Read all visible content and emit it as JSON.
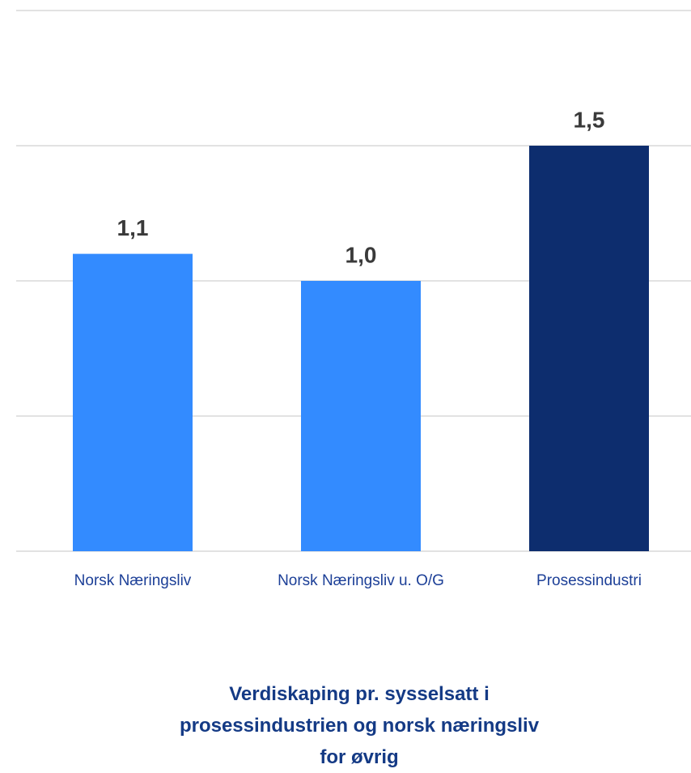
{
  "chart_data": {
    "type": "bar",
    "title": "Verdiskaping pr. sysselsatt i prosessindustrien og norsk næringsliv for øvrig",
    "categories": [
      "Norsk Næringsliv",
      "Norsk Næringsliv u. O/G",
      "Prosessindustri"
    ],
    "values": [
      1.1,
      1.0,
      1.5
    ],
    "value_labels": [
      "1,1",
      "1,0",
      "1,5"
    ],
    "colors": [
      "#338bff",
      "#338bff",
      "#0d2d6e"
    ],
    "ylim": [
      0,
      2
    ],
    "yticks": [
      0,
      0.5,
      1,
      1.5,
      2
    ],
    "grid": true
  }
}
